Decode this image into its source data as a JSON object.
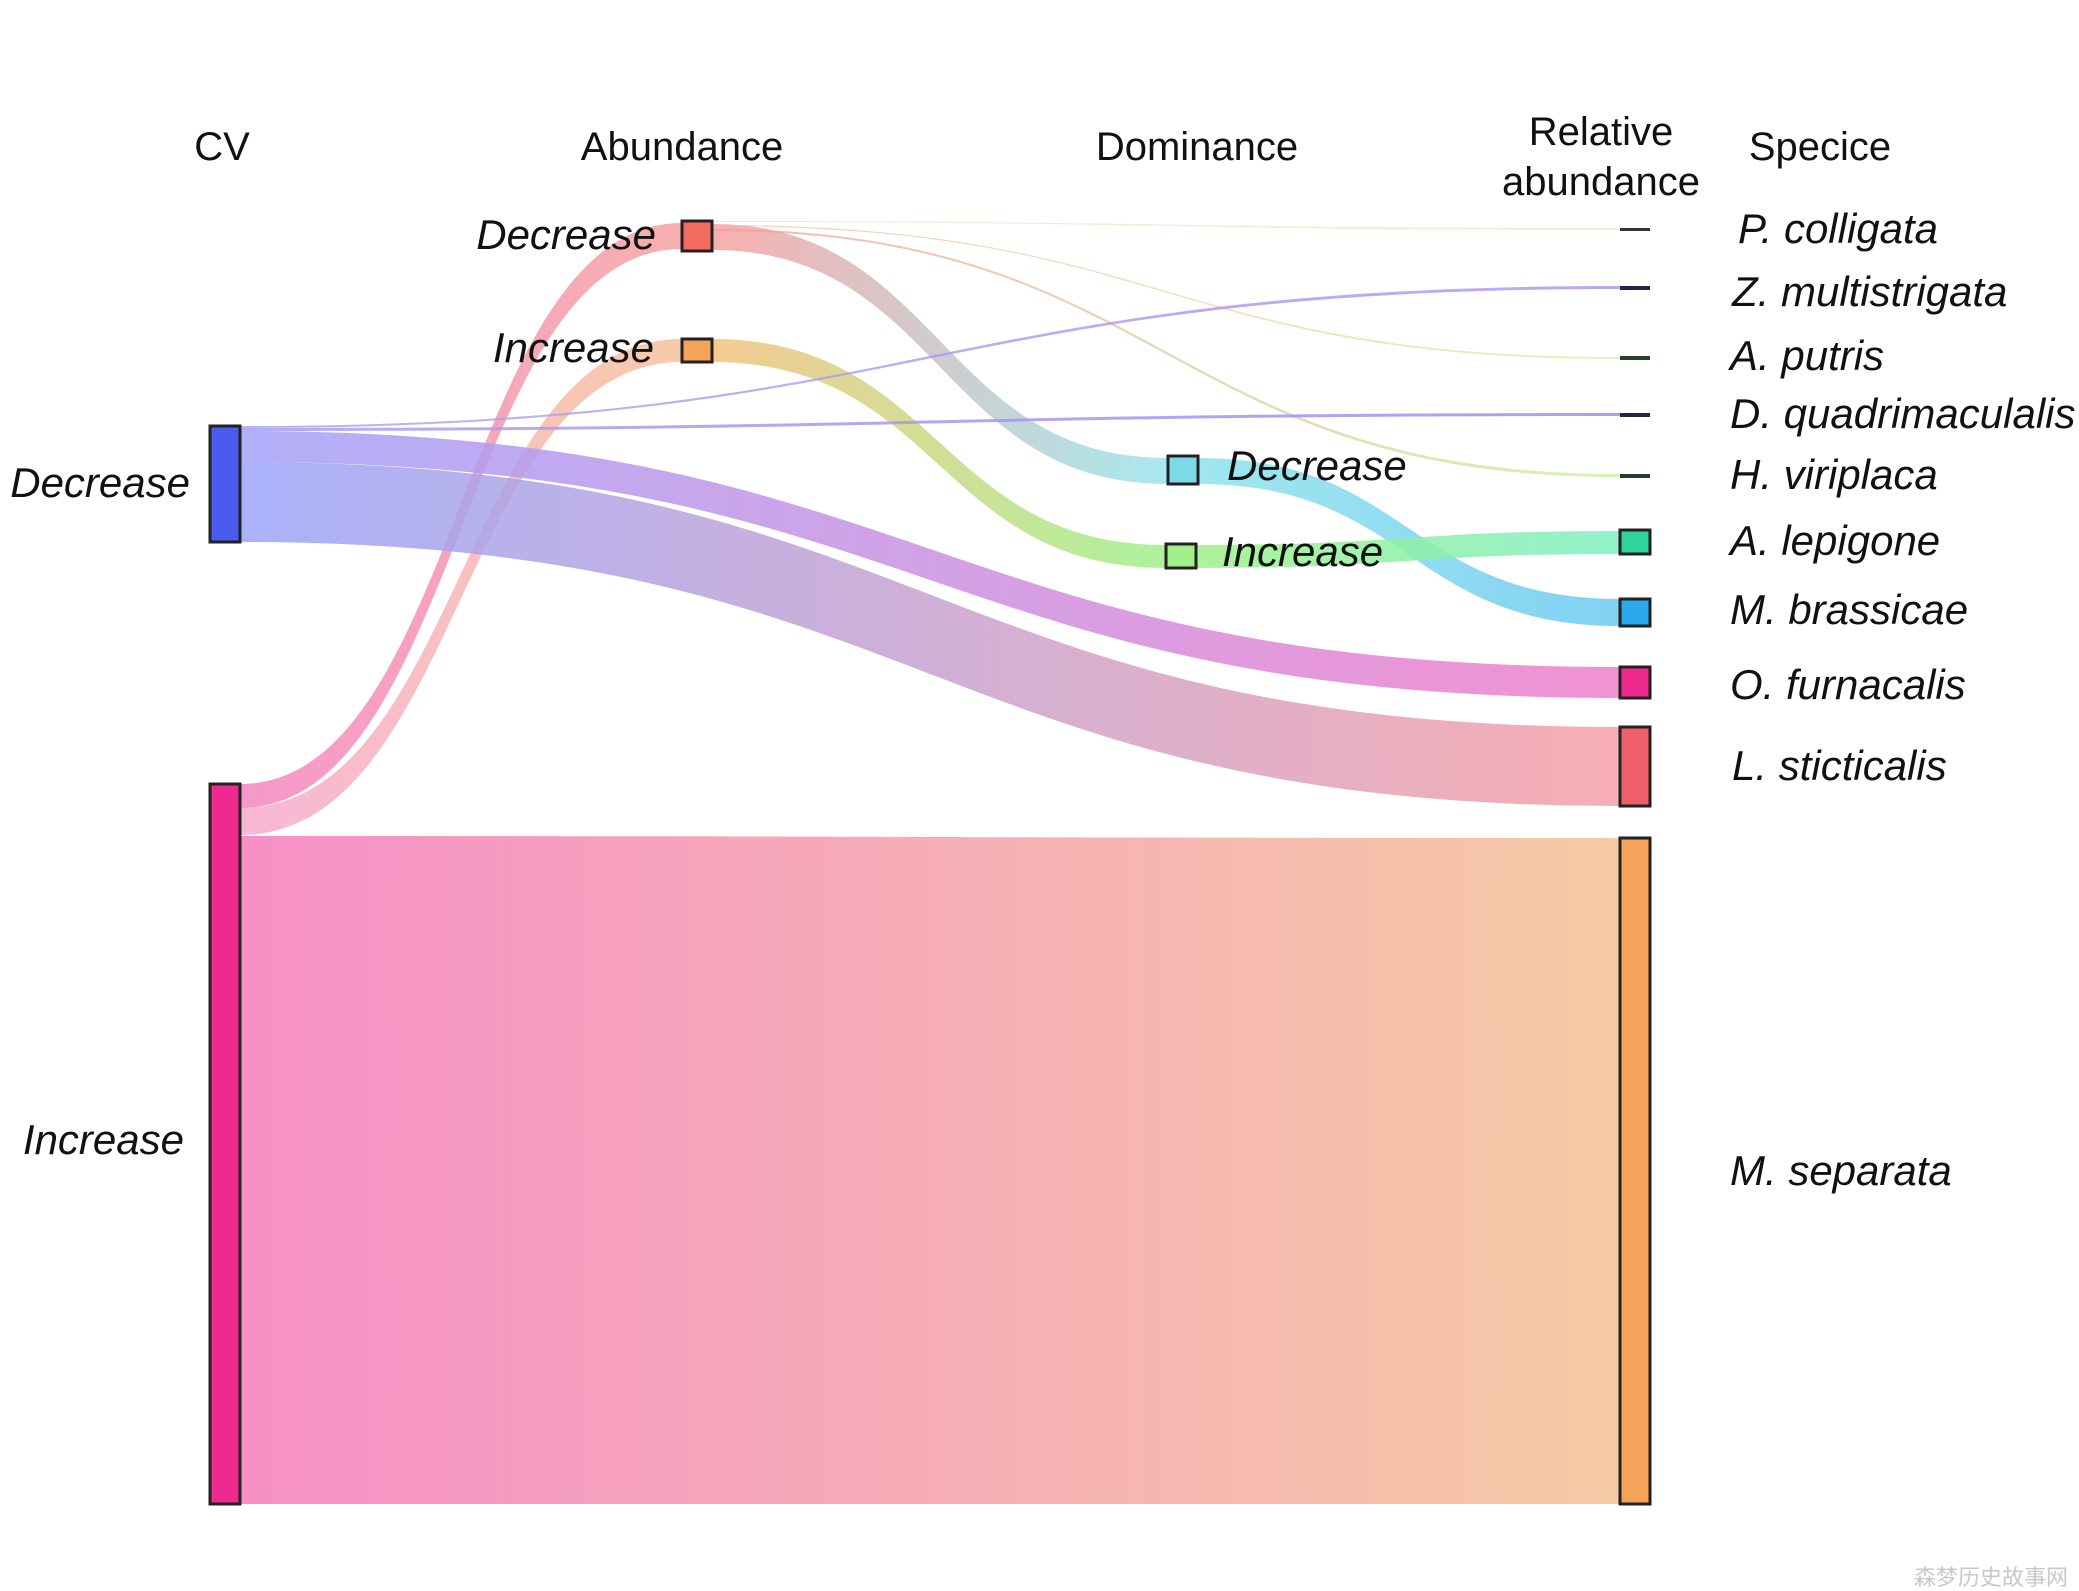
{
  "chart_data": {
    "type": "sankey",
    "columns": [
      "CV",
      "Abundance",
      "Dominance",
      "Relative\nabundance",
      "Specice"
    ],
    "nodes": {
      "cv": [
        {
          "id": "cv_dec",
          "label": "Decrease",
          "color": "#4a5cf0"
        },
        {
          "id": "cv_inc",
          "label": "Increase",
          "color": "#ee2a8e"
        }
      ],
      "abundance": [
        {
          "id": "ab_dec",
          "label": "Decrease",
          "color": "#f36a5e"
        },
        {
          "id": "ab_inc",
          "label": "Increase",
          "color": "#f5a35a"
        }
      ],
      "dominance": [
        {
          "id": "do_dec",
          "label": "Decrease",
          "color": "#7dd9e3"
        },
        {
          "id": "do_inc",
          "label": "Increase",
          "color": "#9ff08a"
        }
      ],
      "species": [
        {
          "id": "sp_pc",
          "label": "P. colligata",
          "color": "#333333"
        },
        {
          "id": "sp_zm",
          "label": "Z. multistrigata",
          "color": "#26214a"
        },
        {
          "id": "sp_ap",
          "label": "A. putris",
          "color": "#27402a"
        },
        {
          "id": "sp_dq",
          "label": "D. quadrimaculalis",
          "color": "#32203f"
        },
        {
          "id": "sp_hv",
          "label": "H. viriplaca",
          "color": "#27402a"
        },
        {
          "id": "sp_al",
          "label": "A. lepigone",
          "color": "#2fd39c"
        },
        {
          "id": "sp_mb",
          "label": "M. brassicae",
          "color": "#2aa8ee"
        },
        {
          "id": "sp_of",
          "label": "O. furnacalis",
          "color": "#ee2a8e"
        },
        {
          "id": "sp_ls",
          "label": "L. sticticalis",
          "color": "#f0606a"
        },
        {
          "id": "sp_ms",
          "label": "M. separata",
          "color": "#f5a35a"
        }
      ]
    },
    "flows": [
      {
        "path": [
          "cv_inc",
          "ab_dec",
          "do_dec",
          "sp_mb"
        ],
        "value": 20
      },
      {
        "path": [
          "cv_inc",
          "ab_dec",
          "sp_hv"
        ],
        "value": 1
      },
      {
        "path": [
          "cv_inc",
          "ab_dec",
          "sp_ap"
        ],
        "value": 0.5
      },
      {
        "path": [
          "cv_inc",
          "ab_dec",
          "sp_pc"
        ],
        "value": 0.3
      },
      {
        "path": [
          "cv_inc",
          "ab_inc",
          "do_inc",
          "sp_al"
        ],
        "value": 18
      },
      {
        "path": [
          "cv_inc",
          "sp_ms"
        ],
        "value": 500
      },
      {
        "path": [
          "cv_dec",
          "sp_zm"
        ],
        "value": 1
      },
      {
        "path": [
          "cv_dec",
          "sp_dq"
        ],
        "value": 1.5
      },
      {
        "path": [
          "cv_dec",
          "sp_of"
        ],
        "value": 24
      },
      {
        "path": [
          "cv_dec",
          "sp_ls"
        ],
        "value": 60
      }
    ]
  },
  "watermark": "森梦历史故事网"
}
